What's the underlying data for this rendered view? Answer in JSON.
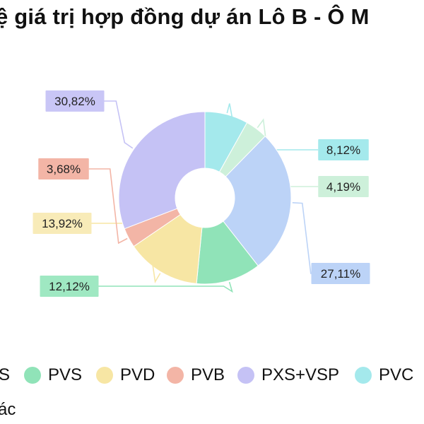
{
  "title": "ệ giá trị hợp đồng dự án Lô B - Ô M",
  "chart_data": {
    "type": "pie",
    "donut": true,
    "slices": [
      {
        "name": "PVC",
        "value": 8.12,
        "label": "8,12%",
        "color": "#a4e9ec",
        "label_bg": "#a4e9ec"
      },
      {
        "name": "",
        "value": 4.19,
        "label": "4,19%",
        "color": "#cdf0da",
        "label_bg": "#cdf0da"
      },
      {
        "name": "",
        "value": 27.11,
        "label": "27,11%",
        "color": "#bcd3f7",
        "label_bg": "#bcd3f7"
      },
      {
        "name": "PVS",
        "value": 12.12,
        "label": "12,12%",
        "color": "#90e3b8",
        "label_bg": "#9fe8c2"
      },
      {
        "name": "PVD",
        "value": 13.92,
        "label": "13,92%",
        "color": "#f7e6a4",
        "label_bg": "#f8ebb8"
      },
      {
        "name": "PVB",
        "value": 3.68,
        "label": "3,68%",
        "color": "#f3b5a6",
        "label_bg": "#f3b5a6"
      },
      {
        "name": "PXS+VSP",
        "value": 30.82,
        "label": "30,82%",
        "color": "#c5c2f5",
        "label_bg": "#c9c6f6"
      }
    ],
    "legend": [
      {
        "name": "S",
        "color": "",
        "partial": true
      },
      {
        "name": "PVS",
        "color": "#90e3b8"
      },
      {
        "name": "PVD",
        "color": "#f7e6a4"
      },
      {
        "name": "PVB",
        "color": "#f3b5a6"
      },
      {
        "name": "PXS+VSP",
        "color": "#c5c2f5"
      },
      {
        "name": "PVC",
        "color": "#a4e9ec"
      }
    ],
    "legend_row2": "ác",
    "legend_placement": "bottom"
  }
}
